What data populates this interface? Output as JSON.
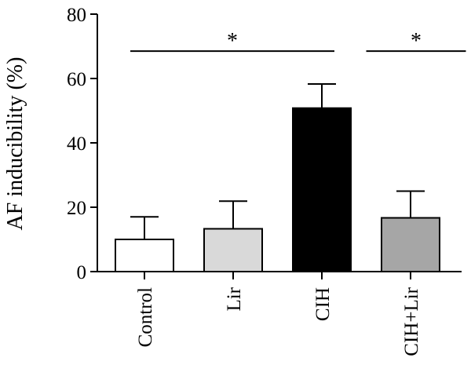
{
  "chart_data": {
    "type": "bar",
    "title": "",
    "xlabel": "",
    "ylabel": "AF inducibility (%)",
    "ylim": [
      0,
      80
    ],
    "yticks": [
      0,
      20,
      40,
      60,
      80
    ],
    "grid": false,
    "categories": [
      "Control",
      "Lir",
      "CIH",
      "CIH+Lir"
    ],
    "values": [
      10,
      13.3,
      50.8,
      16.7
    ],
    "errors": [
      7,
      8.6,
      7.5,
      8.3
    ],
    "bar_colors": [
      "#ffffff",
      "#d9d9d9",
      "#000000",
      "#a6a6a6"
    ],
    "significance": [
      {
        "from": 0,
        "to": 2,
        "y": 68.5,
        "label": "*"
      },
      {
        "from": 2.5,
        "to": 3.5,
        "y": 68.5,
        "label": "*"
      }
    ]
  }
}
